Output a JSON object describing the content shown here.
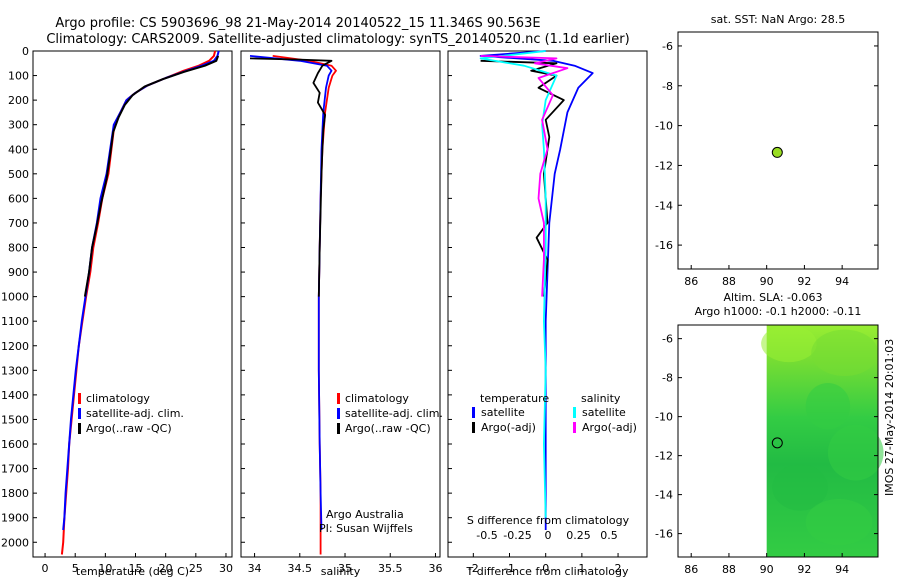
{
  "header": {
    "title_line1": "Argo profile: CS 5903696_98 21-May-2014 20140522_15 11.346S 90.563E",
    "title_line2": "Climatology: CARS2009. Satellite-adjusted climatology: synTS_20140520.nc (1.1d earlier)"
  },
  "chart_data": [
    {
      "id": "temperature",
      "type": "line",
      "xlabel": "temperature (deg C)",
      "ylabel": "",
      "xlim": [
        -2,
        31
      ],
      "ylim": [
        2060,
        0
      ],
      "x_ticks": [
        0,
        5,
        10,
        15,
        20,
        25,
        30
      ],
      "y_ticks": [
        0,
        100,
        200,
        300,
        400,
        500,
        600,
        700,
        800,
        900,
        1000,
        1100,
        1200,
        1300,
        1400,
        1500,
        1600,
        1700,
        1800,
        1900,
        2000
      ],
      "legend": [
        "climatology",
        "satellite-adj. clim.",
        "Argo(..raw -QC)"
      ],
      "series": [
        {
          "name": "climatology",
          "color": "#ff0000",
          "points": [
            [
              28.2,
              0
            ],
            [
              28.0,
              20
            ],
            [
              27.2,
              40
            ],
            [
              25.5,
              60
            ],
            [
              23,
              80
            ],
            [
              20,
              110
            ],
            [
              17,
              140
            ],
            [
              15,
              170
            ],
            [
              13.5,
              200
            ],
            [
              12.5,
              250
            ],
            [
              11.5,
              300
            ],
            [
              11,
              400
            ],
            [
              10.5,
              500
            ],
            [
              9.5,
              600
            ],
            [
              8.8,
              700
            ],
            [
              8.0,
              800
            ],
            [
              7.5,
              900
            ],
            [
              6.8,
              1000
            ],
            [
              6.2,
              1100
            ],
            [
              5.6,
              1200
            ],
            [
              5.2,
              1300
            ],
            [
              4.8,
              1400
            ],
            [
              4.4,
              1500
            ],
            [
              4.0,
              1600
            ],
            [
              3.8,
              1700
            ],
            [
              3.5,
              1800
            ],
            [
              3.2,
              1900
            ],
            [
              3.0,
              2000
            ],
            [
              2.8,
              2050
            ]
          ]
        },
        {
          "name": "satellite-adj. clim.",
          "color": "#0000ff",
          "points": [
            [
              28.8,
              0
            ],
            [
              28.6,
              20
            ],
            [
              28.0,
              40
            ],
            [
              26.0,
              60
            ],
            [
              23.5,
              80
            ],
            [
              20,
              110
            ],
            [
              17,
              140
            ],
            [
              15,
              170
            ],
            [
              13.5,
              200
            ],
            [
              12.5,
              250
            ],
            [
              11.4,
              300
            ],
            [
              10.8,
              400
            ],
            [
              10.2,
              500
            ],
            [
              9.2,
              600
            ],
            [
              8.6,
              700
            ],
            [
              7.8,
              800
            ],
            [
              7.3,
              900
            ],
            [
              6.7,
              1000
            ],
            [
              6.1,
              1100
            ],
            [
              5.6,
              1200
            ],
            [
              5.1,
              1300
            ],
            [
              4.7,
              1400
            ],
            [
              4.3,
              1500
            ],
            [
              4.0,
              1600
            ],
            [
              3.7,
              1700
            ],
            [
              3.4,
              1800
            ],
            [
              3.2,
              1900
            ],
            [
              3.0,
              1950
            ]
          ]
        },
        {
          "name": "Argo(..raw -QC)",
          "color": "#000000",
          "points": [
            [
              28.7,
              20
            ],
            [
              28.4,
              40
            ],
            [
              26.5,
              60
            ],
            [
              23,
              85
            ],
            [
              19.5,
              115
            ],
            [
              16.5,
              145
            ],
            [
              14.5,
              180
            ],
            [
              13.2,
              220
            ],
            [
              12.2,
              270
            ],
            [
              11.3,
              330
            ],
            [
              10.8,
              420
            ],
            [
              10.2,
              520
            ],
            [
              9.3,
              620
            ],
            [
              8.5,
              720
            ],
            [
              7.8,
              800
            ],
            [
              7.3,
              900
            ],
            [
              6.6,
              1000
            ]
          ]
        }
      ]
    },
    {
      "id": "salinity",
      "type": "line",
      "xlabel": "salinity",
      "xlim": [
        33.85,
        36.05
      ],
      "ylim": [
        2060,
        0
      ],
      "x_ticks": [
        34,
        34.5,
        35,
        35.5,
        36
      ],
      "x_tick_labels": [
        "34",
        "34.5",
        "35",
        "35.5",
        "36"
      ],
      "legend": [
        "climatology",
        "satellite-adj. clim.",
        "Argo(..raw -QC)"
      ],
      "annotations": [
        "Argo Australia",
        "PI: Susan Wijffels"
      ],
      "series": [
        {
          "name": "climatology",
          "color": "#ff0000",
          "points": [
            [
              34.2,
              20
            ],
            [
              34.6,
              40
            ],
            [
              34.85,
              60
            ],
            [
              34.9,
              80
            ],
            [
              34.86,
              100
            ],
            [
              34.82,
              150
            ],
            [
              34.78,
              250
            ],
            [
              34.75,
              400
            ],
            [
              34.73,
              600
            ],
            [
              34.72,
              800
            ],
            [
              34.71,
              1000
            ],
            [
              34.71,
              1300
            ],
            [
              34.72,
              1600
            ],
            [
              34.73,
              1800
            ],
            [
              34.73,
              2000
            ],
            [
              34.73,
              2050
            ]
          ]
        },
        {
          "name": "satellite-adj. clim.",
          "color": "#0000ff",
          "points": [
            [
              33.95,
              20
            ],
            [
              34.5,
              40
            ],
            [
              34.8,
              60
            ],
            [
              34.85,
              80
            ],
            [
              34.82,
              100
            ],
            [
              34.79,
              150
            ],
            [
              34.76,
              250
            ],
            [
              34.74,
              400
            ],
            [
              34.73,
              600
            ],
            [
              34.72,
              800
            ],
            [
              34.71,
              1000
            ],
            [
              34.71,
              1300
            ],
            [
              34.72,
              1600
            ],
            [
              34.73,
              1800
            ],
            [
              34.74,
              1950
            ]
          ]
        },
        {
          "name": "Argo(..raw -QC)",
          "color": "#000000",
          "points": [
            [
              33.95,
              30
            ],
            [
              34.5,
              35
            ],
            [
              34.85,
              40
            ],
            [
              34.75,
              60
            ],
            [
              34.7,
              90
            ],
            [
              34.65,
              130
            ],
            [
              34.72,
              170
            ],
            [
              34.7,
              210
            ],
            [
              34.78,
              260
            ],
            [
              34.76,
              320
            ],
            [
              34.75,
              400
            ],
            [
              34.74,
              500
            ],
            [
              34.73,
              650
            ],
            [
              34.72,
              800
            ],
            [
              34.71,
              1000
            ]
          ]
        }
      ]
    },
    {
      "id": "difference",
      "type": "line",
      "xlabel": "T difference from climatology",
      "xlabel_top": "S difference from climatology",
      "xlim": [
        -2.7,
        2.8
      ],
      "ylim": [
        2060,
        0
      ],
      "x_ticks": [
        -2,
        -1,
        0,
        1,
        2
      ],
      "x_tick_labels": [
        "-2",
        "-1",
        "0",
        "1",
        "2"
      ],
      "s_ticks": [
        -0.5,
        -0.25,
        0,
        0.25,
        0.5
      ],
      "s_tick_labels": [
        "-0.5",
        "-0.25",
        "0",
        "0.25",
        "0.5"
      ],
      "legend_headers": [
        "temperature",
        "salinity"
      ],
      "legend": [
        "satellite",
        "Argo(-adj)",
        "satellite",
        "Argo(-adj)"
      ],
      "series": [
        {
          "name": "T satellite",
          "color": "#0000ff",
          "points": [
            [
              0,
              0
            ],
            [
              -1.8,
              20
            ],
            [
              0.2,
              40
            ],
            [
              0.8,
              60
            ],
            [
              1.3,
              90
            ],
            [
              0.9,
              150
            ],
            [
              0.6,
              250
            ],
            [
              0.4,
              400
            ],
            [
              0.25,
              500
            ],
            [
              0.1,
              700
            ],
            [
              0.05,
              900
            ],
            [
              0,
              1100
            ],
            [
              0,
              1400
            ],
            [
              0,
              1700
            ],
            [
              0,
              1950
            ]
          ]
        },
        {
          "name": "T Argo(-adj)",
          "color": "#000000",
          "points": [
            [
              -1.8,
              40
            ],
            [
              0.3,
              50
            ],
            [
              -0.4,
              80
            ],
            [
              0.3,
              100
            ],
            [
              -0.2,
              150
            ],
            [
              0.5,
              200
            ],
            [
              0,
              280
            ],
            [
              0.1,
              350
            ],
            [
              -0.05,
              500
            ],
            [
              0.05,
              700
            ],
            [
              -0.25,
              760
            ],
            [
              0.05,
              850
            ],
            [
              -0.05,
              1000
            ]
          ]
        },
        {
          "name": "S satellite",
          "color": "#00ffff",
          "points": [
            [
              0,
              0
            ],
            [
              -1.8,
              30
            ],
            [
              -0.6,
              60
            ],
            [
              0.3,
              100
            ],
            [
              0,
              200
            ],
            [
              -0.1,
              300
            ],
            [
              -0.05,
              400
            ],
            [
              0,
              600
            ],
            [
              0,
              800
            ],
            [
              -0.05,
              1100
            ],
            [
              0,
              1300
            ],
            [
              -0.05,
              1600
            ],
            [
              0,
              1900
            ]
          ]
        },
        {
          "name": "S Argo(-adj)",
          "color": "#ff00ff",
          "points": [
            [
              -1.8,
              20
            ],
            [
              0.3,
              30
            ],
            [
              -0.3,
              50
            ],
            [
              0.6,
              70
            ],
            [
              -0.2,
              110
            ],
            [
              0.2,
              180
            ],
            [
              -0.1,
              280
            ],
            [
              0.05,
              400
            ],
            [
              -0.15,
              500
            ],
            [
              -0.2,
              600
            ],
            [
              -0.05,
              700
            ],
            [
              -0.05,
              850
            ],
            [
              -0.1,
              1000
            ]
          ]
        }
      ]
    },
    {
      "id": "sst-map",
      "type": "scatter",
      "title": "sat. SST: NaN Argo: 28.5",
      "xlim": [
        85.3,
        95.9
      ],
      "ylim": [
        -17.2,
        -5.3
      ],
      "x_ticks": [
        86,
        88,
        90,
        92,
        94
      ],
      "y_ticks": [
        -6,
        -8,
        -10,
        -12,
        -14,
        -16
      ],
      "points": [
        {
          "x": 90.563,
          "y": -11.346,
          "color": "#99dd22"
        }
      ]
    },
    {
      "id": "sla-map",
      "type": "heatmap",
      "title_line1": "Altim. SLA: -0.063",
      "title_line2": "Argo h1000: -0.1 h2000: -0.11",
      "xlim": [
        85.3,
        95.9
      ],
      "ylim": [
        -17.2,
        -5.3
      ],
      "x_ticks": [
        86,
        88,
        90,
        92,
        94
      ],
      "y_ticks": [
        -6,
        -8,
        -10,
        -12,
        -14,
        -16
      ],
      "field_x_range": [
        90,
        95.9
      ],
      "colors": [
        "#99ee33",
        "#77dd33",
        "#33cc44",
        "#22bb44"
      ],
      "points": [
        {
          "x": 90.563,
          "y": -11.346
        }
      ]
    }
  ],
  "footer": {
    "side_label": "IMOS 27-May-2014 20:01:03"
  }
}
